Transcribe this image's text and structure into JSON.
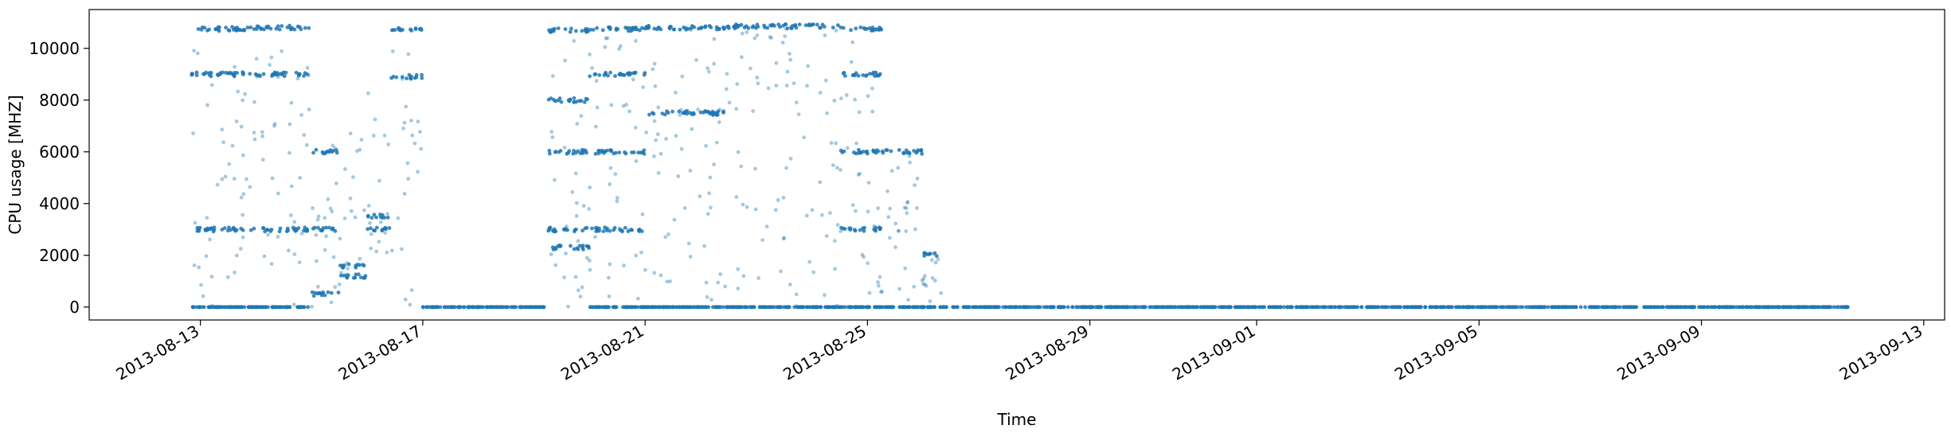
{
  "chart_data": {
    "type": "scatter",
    "title": "",
    "xlabel": "Time",
    "ylabel": "CPU usage [MHZ]",
    "point_color": "#1f77b4",
    "x_axis": {
      "kind": "date",
      "range": [
        "2013-08-11T00:00",
        "2013-09-13T09:00"
      ],
      "tick_labels": [
        "2013-08-13",
        "2013-08-17",
        "2013-08-21",
        "2013-08-25",
        "2013-08-29",
        "2013-09-01",
        "2013-09-05",
        "2013-09-09",
        "2013-09-13"
      ]
    },
    "y_axis": {
      "range": [
        -500,
        11500
      ],
      "ticks": [
        0,
        2000,
        4000,
        6000,
        8000,
        10000
      ],
      "tick_labels": [
        "0",
        "2000",
        "4000",
        "6000",
        "8000",
        "10000"
      ]
    },
    "grid": false,
    "legend": "none",
    "series": [
      {
        "segments": [
          {
            "start": "2013-08-12T20:00",
            "end": "2013-08-14T00:00",
            "levels": [
              10750,
              9000,
              3000,
              0
            ],
            "spread": [
              0,
              10000
            ]
          },
          {
            "start": "2013-08-14T00:00",
            "end": "2013-08-14T23:00",
            "levels": [
              10800,
              9000,
              3000,
              0
            ],
            "spread": [
              0,
              10000
            ]
          },
          {
            "start": "2013-08-15T00:00",
            "end": "2013-08-15T12:00",
            "levels": [
              6000,
              3000,
              500
            ],
            "spread": [
              0,
              7000
            ]
          },
          {
            "start": "2013-08-15T12:00",
            "end": "2013-08-16T00:00",
            "levels": [
              1200,
              1600
            ],
            "spread": [
              800,
              7000
            ]
          },
          {
            "start": "2013-08-16T00:00",
            "end": "2013-08-16T10:00",
            "levels": [
              3500,
              3000
            ],
            "spread": [
              2000,
              9000
            ]
          },
          {
            "start": "2013-08-16T10:00",
            "end": "2013-08-17T00:00",
            "levels": [
              10700,
              8900
            ],
            "spread": [
              0,
              10700
            ]
          },
          {
            "start": "2013-08-17T00:00",
            "end": "2013-08-19T06:00",
            "levels": [
              0
            ],
            "spread": [
              0,
              0
            ]
          },
          {
            "start": "2013-08-19T06:00",
            "end": "2013-08-20T00:00",
            "levels": [
              10700,
              8000,
              6000,
              3000,
              2300
            ],
            "spread": [
              0,
              10700
            ]
          },
          {
            "start": "2013-08-20T00:00",
            "end": "2013-08-21T00:00",
            "levels": [
              10750,
              9000,
              6000,
              3000,
              0
            ],
            "spread": [
              0,
              10700
            ]
          },
          {
            "start": "2013-08-21T00:00",
            "end": "2013-08-22T12:00",
            "levels": [
              10800,
              7500,
              0
            ],
            "spread": [
              0,
              10800
            ]
          },
          {
            "start": "2013-08-22T12:00",
            "end": "2013-08-24T12:00",
            "levels": [
              10850,
              0
            ],
            "spread": [
              0,
              10800
            ]
          },
          {
            "start": "2013-08-24T12:00",
            "end": "2013-08-25T06:00",
            "levels": [
              10750,
              9000,
              6000,
              3000,
              0
            ],
            "spread": [
              0,
              10700
            ]
          },
          {
            "start": "2013-08-25T06:00",
            "end": "2013-08-26T00:00",
            "levels": [
              6000,
              0
            ],
            "spread": [
              0,
              6000
            ]
          },
          {
            "start": "2013-08-26T00:00",
            "end": "2013-08-26T08:00",
            "levels": [
              0,
              2050
            ],
            "spread": [
              0,
              2100
            ]
          },
          {
            "start": "2013-08-26T08:00",
            "end": "2013-09-11T16:00",
            "levels": [
              0
            ],
            "spread": [
              0,
              0
            ]
          }
        ]
      }
    ]
  }
}
